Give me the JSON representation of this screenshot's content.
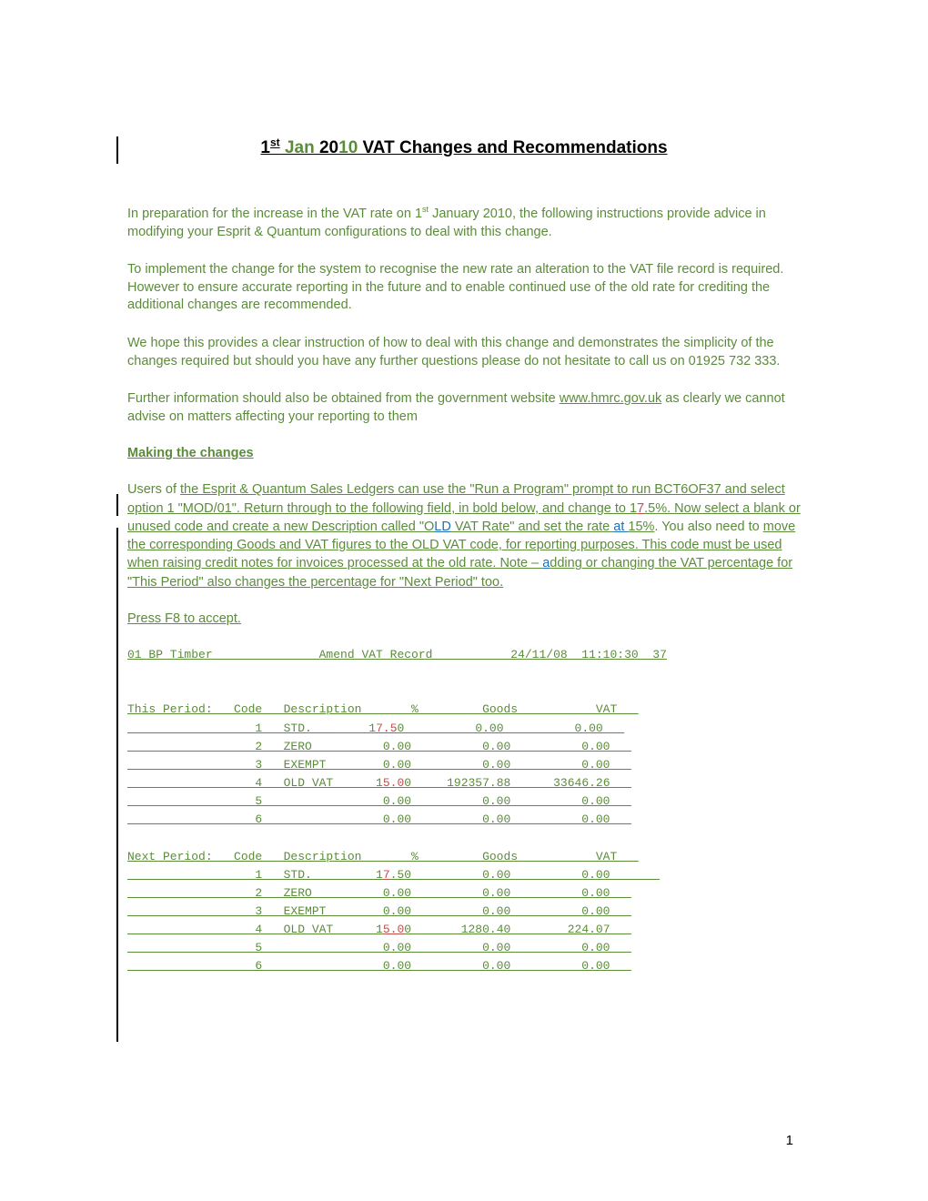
{
  "title": {
    "t1": "1",
    "st": "st",
    "space1": " ",
    "jan": "Jan",
    "space2": " 20",
    "ten": "10",
    "rest": " VAT Changes and Recommendations"
  },
  "paras": {
    "p1a": "In preparation for the increase in the VAT rate on 1",
    "p1sup": "st",
    "p1b": " January 2010, the following instructions provide advice in modifying your Esprit & Quantum configurations to deal with this change.",
    "p2": "To implement the change for the system to recognise the new rate an alteration to the VAT file record is required. However to ensure accurate reporting in the future and to enable continued use of the old rate for crediting the additional changes are recommended.",
    "p3": "We hope this provides a clear instruction of how to deal with this change and demonstrates the simplicity of the changes required but should you have any further questions please do not hesitate to call us on 01925 732 333.",
    "p4a": "Further information should also be obtained from the government website ",
    "p4link": "www.hmrc.gov.uk",
    "p4b": " as clearly we cannot advise on matters affecting your reporting to them"
  },
  "section_head": "Making the changes",
  "instr": {
    "s1": "Users of ",
    "s2": "the Esprit & Quantum Sales Ledgers can use the \"Run a Program\" prompt to run BCT6OF37 and select option 1 \"MOD/01\". Return through to the following field, in bold below, and change to 1",
    "s3": "7",
    "s4": ".5",
    "s5": "%.  Now select a blank or unused code and create a new Description called \"O",
    "s6": "LD",
    "s7": " VAT Rate\" and set the rate ",
    "s8": "at ",
    "s9": "15%",
    "s10": ". You also need to ",
    "s11": "move the corresponding Goods and VAT figures to the OLD VAT code, for reporting purposes. This code must be used when raising credit notes for invoices processed at the old rate. Note – ",
    "s12": "a",
    "s13": "dding or changing the VAT percentage for \"This Period\" also changes the percentage for \"Next Period\" too."
  },
  "press": "Press F8 to accept.",
  "mono": {
    "header": "01 BP Timber               Amend VAT Record           24/11/08  11:10:30  37",
    "blank": "",
    "thisPeriodHead": "This Period:   Code   Description       %         Goods           VAT   ",
    "tp1a": "                  1   STD.",
    "tp1pad": "___",
    "tp1b": "     1",
    "tp1c": "7",
    "tp1d": ".",
    "tp1e": "5",
    "tp1f": "0          0.00          0.00   ",
    "tp2": "                  2   ZERO          0.00          0.00          0.00   ",
    "tp3": "                  3   EXEMPT        0.00          0.00          0.00   ",
    "tp4a": "                  4   OLD VAT      1",
    "tp4b": "5",
    "tp4c": ".",
    "tp4d": "0",
    "tp4e": "0     192357.88      33646.26   ",
    "tp5": "                  5                 0.00          0.00          0.00   ",
    "tp6": "                  6                 0.00          0.00          0.00   ",
    "nextPeriodHead": "Next Period:   Code   Description       %         Goods           VAT   ",
    "np1a": "                  1   STD.         1",
    "np1b": "7",
    "np1c": ".50          0.00          0.00       ",
    "np2": "                  2   ZERO          0.00          0.00          0.00   ",
    "np3": "                  3   EXEMPT        0.00          0.00          0.00   ",
    "np4a": "                  4   OLD VAT      1",
    "np4b": "5",
    "np4c": ".",
    "np4d": "0",
    "np4e": "0       1280.40        224.07   ",
    "np5": "                  5                 0.00          0.00          0.00   ",
    "np6": "                  6                 0.00          0.00          0.00   "
  },
  "pagenum": "1"
}
